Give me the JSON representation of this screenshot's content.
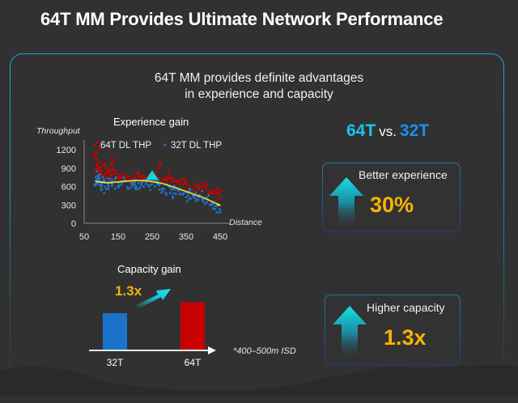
{
  "page": {
    "title": "64T MM Provides Ultimate Network Performance",
    "subtitle_line1": "64T MM provides definite advantages",
    "subtitle_line2": "in experience and capacity"
  },
  "comparison": {
    "left": "64T",
    "middle": "vs.",
    "right": "32T",
    "left_color": "#17c7f0",
    "right_color": "#1e8ff0"
  },
  "stats": [
    {
      "label": "Better experience",
      "value": "30%"
    },
    {
      "label": "Higher capacity",
      "value": "1.3x"
    }
  ],
  "colors": {
    "series_64t": "#c90000",
    "series_32t": "#1a73c9",
    "trend": "#f2e03a",
    "accent": "#f7b400",
    "arrow": "#17d3e0"
  },
  "chart_data": [
    {
      "type": "scatter",
      "title": "Experience gain",
      "xlabel": "Distance",
      "ylabel": "Throughput",
      "xlim": [
        50,
        450
      ],
      "ylim": [
        0,
        1300
      ],
      "xticks": [
        "50",
        "150",
        "250",
        "350",
        "450"
      ],
      "yticks": [
        "0",
        "300",
        "600",
        "900",
        "1200"
      ],
      "grid": false,
      "legend": "top",
      "series": [
        {
          "name": "64T DL THP",
          "points": [
            [
              85,
              1150
            ],
            [
              86,
              1050
            ],
            [
              88,
              980
            ],
            [
              90,
              930
            ],
            [
              92,
              890
            ],
            [
              95,
              1250
            ],
            [
              97,
              860
            ],
            [
              100,
              820
            ],
            [
              105,
              950
            ],
            [
              110,
              790
            ],
            [
              115,
              900
            ],
            [
              120,
              850
            ],
            [
              125,
              820
            ],
            [
              130,
              780
            ],
            [
              135,
              1000
            ],
            [
              140,
              870
            ],
            [
              145,
              760
            ],
            [
              150,
              730
            ],
            [
              160,
              750
            ],
            [
              170,
              740
            ],
            [
              180,
              760
            ],
            [
              190,
              730
            ],
            [
              200,
              750
            ],
            [
              210,
              770
            ],
            [
              220,
              760
            ],
            [
              230,
              750
            ],
            [
              240,
              730
            ],
            [
              250,
              740
            ],
            [
              260,
              760
            ],
            [
              270,
              900
            ],
            [
              280,
              720
            ],
            [
              290,
              700
            ],
            [
              300,
              780
            ],
            [
              310,
              740
            ],
            [
              320,
              690
            ],
            [
              330,
              650
            ],
            [
              340,
              720
            ],
            [
              350,
              680
            ],
            [
              360,
              600
            ],
            [
              370,
              560
            ],
            [
              380,
              620
            ],
            [
              390,
              600
            ],
            [
              400,
              600
            ],
            [
              410,
              560
            ],
            [
              420,
              520
            ],
            [
              430,
              480
            ],
            [
              440,
              560
            ],
            [
              445,
              500
            ],
            [
              448,
              430
            ]
          ]
        },
        {
          "name": "32T DL THP",
          "points": [
            [
              85,
              700
            ],
            [
              88,
              650
            ],
            [
              90,
              780
            ],
            [
              95,
              720
            ],
            [
              100,
              600
            ],
            [
              105,
              750
            ],
            [
              110,
              680
            ],
            [
              115,
              560
            ],
            [
              120,
              620
            ],
            [
              130,
              660
            ],
            [
              140,
              720
            ],
            [
              150,
              600
            ],
            [
              160,
              640
            ],
            [
              170,
              700
            ],
            [
              180,
              560
            ],
            [
              190,
              680
            ],
            [
              200,
              620
            ],
            [
              210,
              560
            ],
            [
              220,
              660
            ],
            [
              230,
              700
            ],
            [
              240,
              600
            ],
            [
              250,
              640
            ],
            [
              260,
              680
            ],
            [
              270,
              620
            ],
            [
              280,
              560
            ],
            [
              290,
              500
            ],
            [
              300,
              600
            ],
            [
              310,
              560
            ],
            [
              320,
              480
            ],
            [
              330,
              540
            ],
            [
              340,
              470
            ],
            [
              350,
              430
            ],
            [
              360,
              520
            ],
            [
              370,
              450
            ],
            [
              380,
              400
            ],
            [
              390,
              460
            ],
            [
              400,
              360
            ],
            [
              410,
              420
            ],
            [
              420,
              300
            ],
            [
              430,
              350
            ],
            [
              440,
              280
            ],
            [
              448,
              230
            ]
          ]
        },
        {
          "name": "trend",
          "points": [
            [
              85,
              680
            ],
            [
              120,
              660
            ],
            [
              160,
              680
            ],
            [
              200,
              700
            ],
            [
              240,
              690
            ],
            [
              280,
              650
            ],
            [
              320,
              580
            ],
            [
              360,
              500
            ],
            [
              400,
              420
            ],
            [
              440,
              320
            ],
            [
              450,
              290
            ]
          ]
        }
      ]
    },
    {
      "type": "bar",
      "title": "Capacity gain",
      "categories": [
        "32T",
        "64T"
      ],
      "values": [
        1.0,
        1.3
      ],
      "annotation": "1.3x",
      "note": "*400–500m ISD"
    }
  ]
}
